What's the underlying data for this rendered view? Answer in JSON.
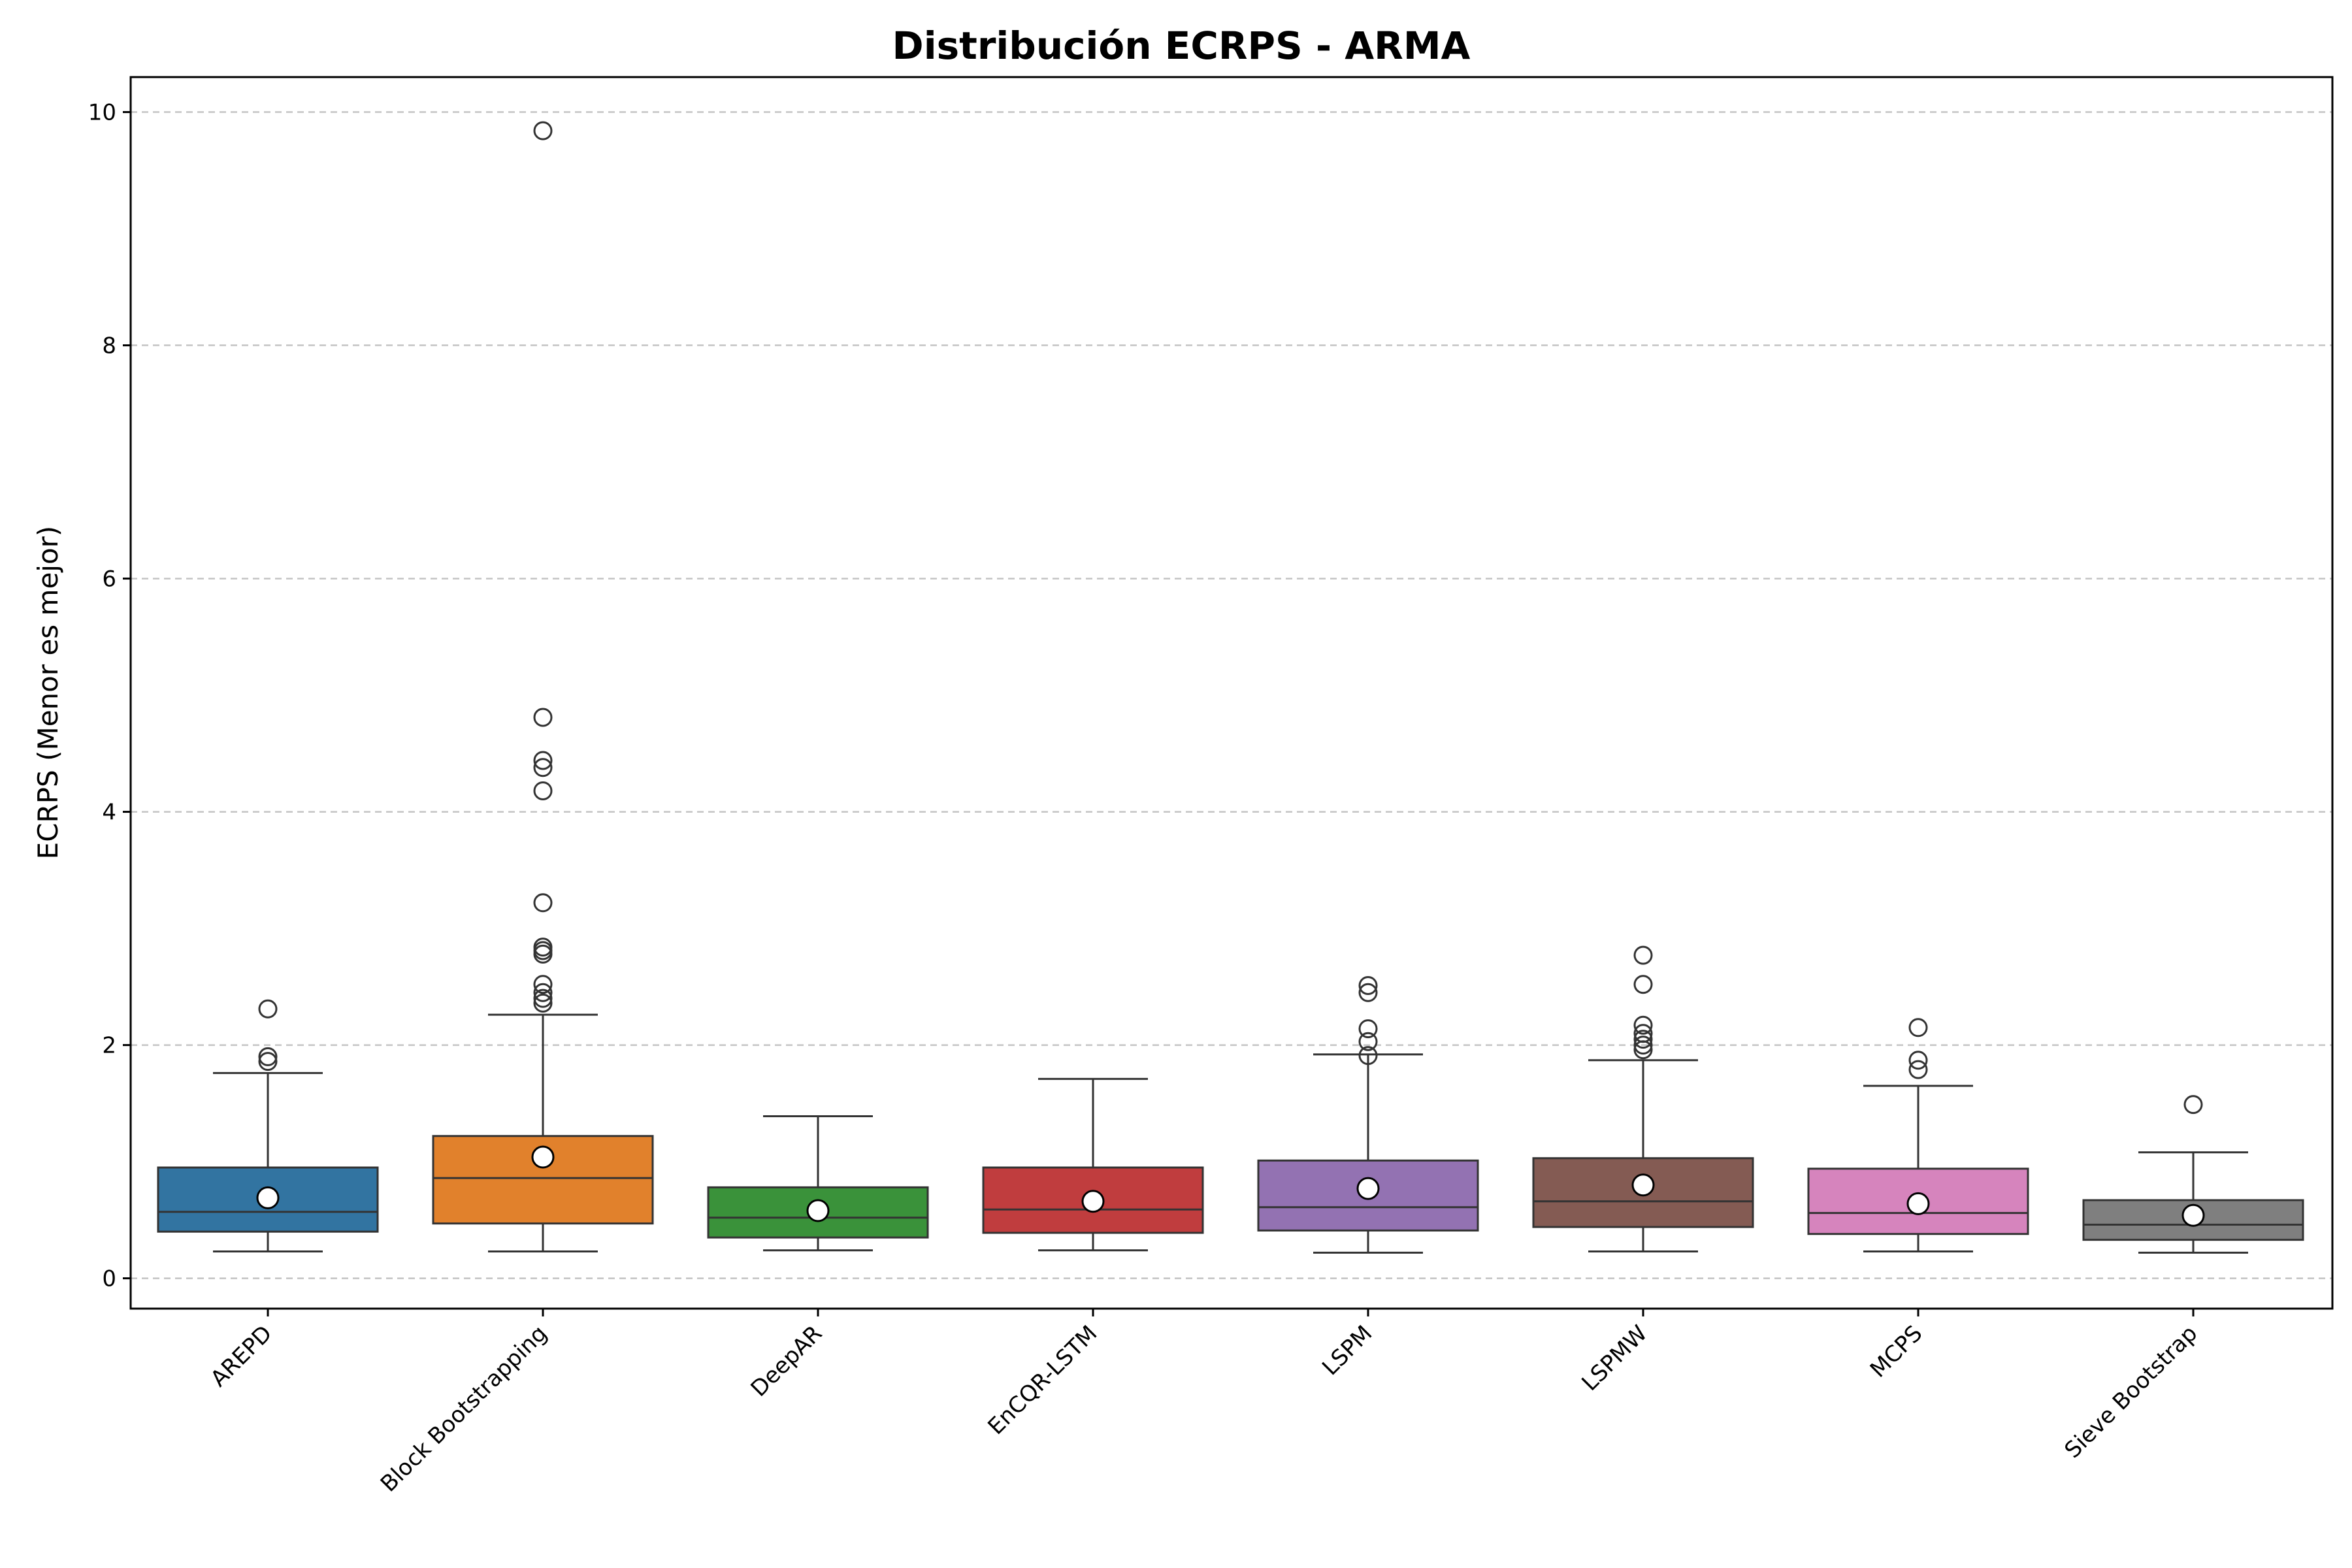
{
  "chart_data": {
    "type": "box",
    "title": "Distribución ECRPS - ARMA",
    "xlabel": "",
    "ylabel": "ECRPS (Menor es mejor)",
    "ylim": [
      -0.26,
      10.3
    ],
    "yticks": [
      0,
      2,
      4,
      6,
      8,
      10
    ],
    "grid": "horizontal dashed",
    "categories": [
      "AREPD",
      "Block Bootstrapping",
      "DeepAR",
      "EnCQR-LSTM",
      "LSPM",
      "LSPMW",
      "MCPS",
      "Sieve Bootstrap"
    ],
    "colors": [
      "#3274a1",
      "#e1812c",
      "#3a923a",
      "#c03d3e",
      "#9372b2",
      "#845b53",
      "#d684bd",
      "#7f7f7f"
    ],
    "boxes": [
      {
        "name": "AREPD",
        "whisker_low": 0.23,
        "q1": 0.4,
        "median": 0.57,
        "q3": 0.95,
        "whisker_high": 1.76,
        "mean": 0.69,
        "outliers": [
          1.86,
          1.9,
          2.31
        ]
      },
      {
        "name": "Block Bootstrapping",
        "whisker_low": 0.23,
        "q1": 0.47,
        "median": 0.86,
        "q3": 1.22,
        "whisker_high": 2.26,
        "mean": 1.04,
        "outliers": [
          2.36,
          2.4,
          2.45,
          2.52,
          2.78,
          2.81,
          2.84,
          3.22,
          4.18,
          4.38,
          4.44,
          4.81,
          9.84
        ]
      },
      {
        "name": "DeepAR",
        "whisker_low": 0.24,
        "q1": 0.35,
        "median": 0.52,
        "q3": 0.78,
        "whisker_high": 1.39,
        "mean": 0.58,
        "outliers": []
      },
      {
        "name": "EnCQR-LSTM",
        "whisker_low": 0.24,
        "q1": 0.39,
        "median": 0.59,
        "q3": 0.95,
        "whisker_high": 1.71,
        "mean": 0.66,
        "outliers": []
      },
      {
        "name": "LSPM",
        "whisker_low": 0.22,
        "q1": 0.41,
        "median": 0.61,
        "q3": 1.01,
        "whisker_high": 1.92,
        "mean": 0.77,
        "outliers": [
          1.91,
          2.03,
          2.14,
          2.45,
          2.51
        ]
      },
      {
        "name": "LSPMW",
        "whisker_low": 0.23,
        "q1": 0.44,
        "median": 0.66,
        "q3": 1.03,
        "whisker_high": 1.87,
        "mean": 0.8,
        "outliers": [
          1.96,
          2.0,
          2.05,
          2.1,
          2.17,
          2.52,
          2.77
        ]
      },
      {
        "name": "MCPS",
        "whisker_low": 0.23,
        "q1": 0.38,
        "median": 0.56,
        "q3": 0.94,
        "whisker_high": 1.65,
        "mean": 0.64,
        "outliers": [
          1.79,
          1.87,
          2.15
        ]
      },
      {
        "name": "Sieve Bootstrap",
        "whisker_low": 0.22,
        "q1": 0.33,
        "median": 0.46,
        "q3": 0.67,
        "whisker_high": 1.08,
        "mean": 0.54,
        "outliers": [
          1.49
        ]
      }
    ]
  }
}
